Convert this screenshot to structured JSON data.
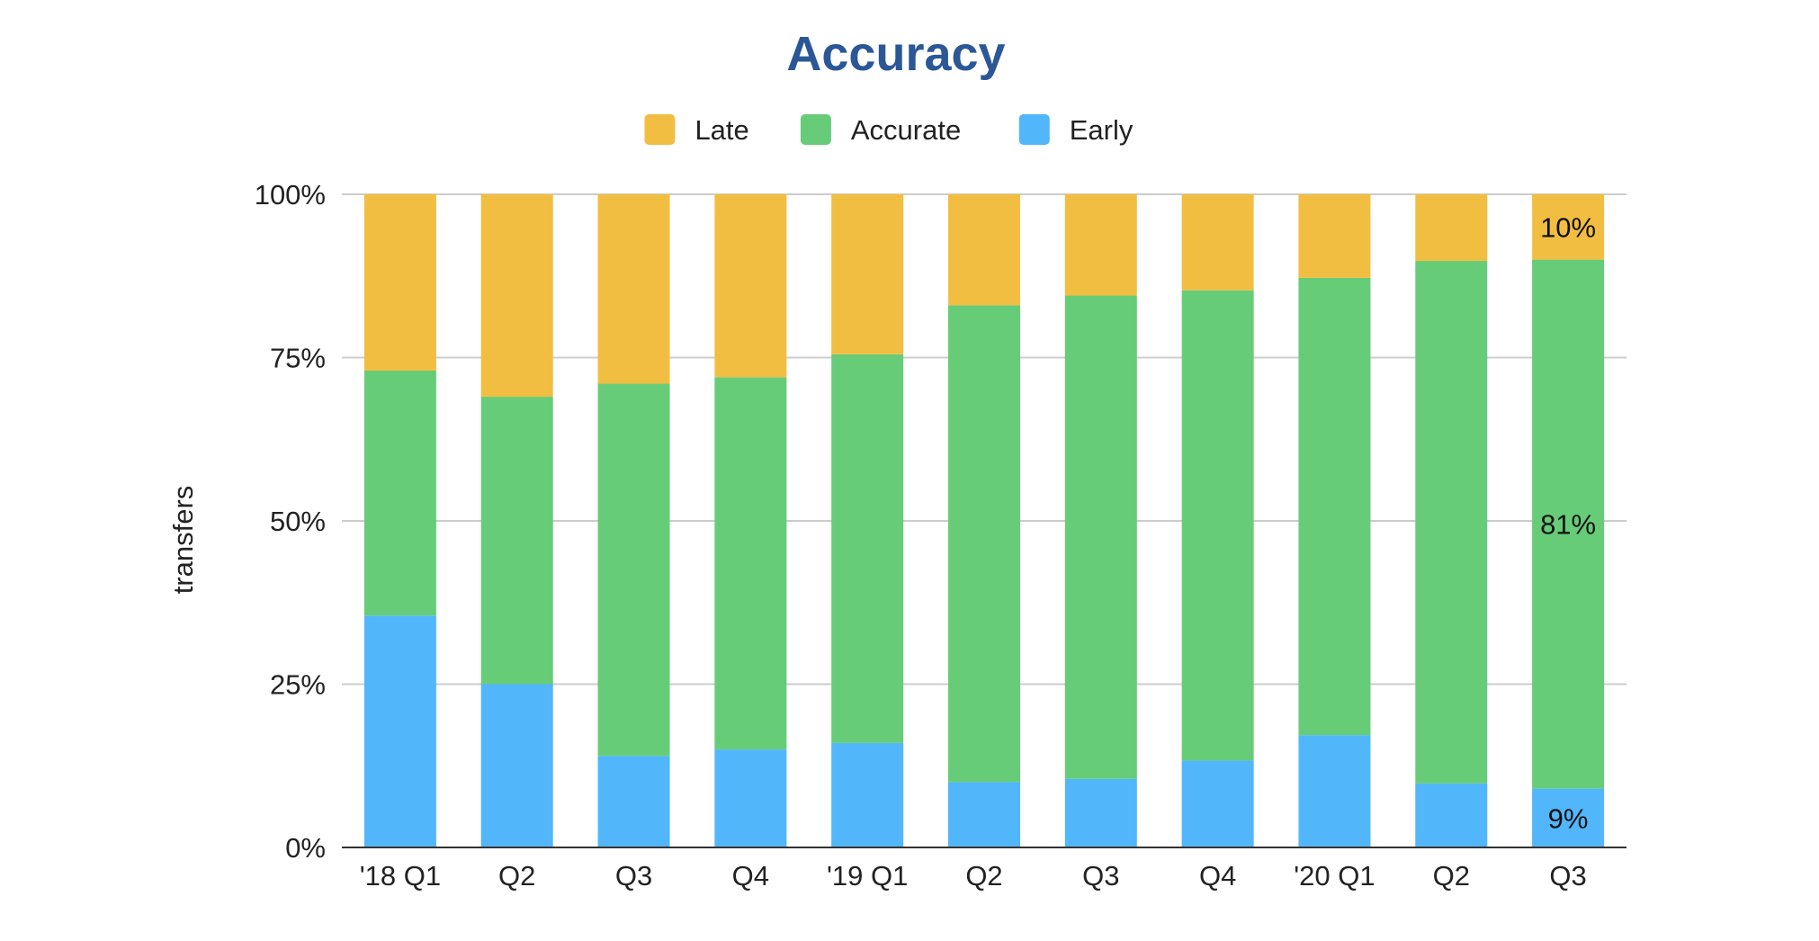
{
  "chart_data": {
    "type": "bar",
    "stacked": true,
    "title": "Accuracy",
    "xlabel": "",
    "ylabel": "transfers",
    "ylim": [
      0,
      100
    ],
    "yticks": [
      "0%",
      "25%",
      "50%",
      "75%",
      "100%"
    ],
    "categories": [
      "'18 Q1",
      "Q2",
      "Q3",
      "Q4",
      "'19 Q1",
      "Q2",
      "Q3",
      "Q4",
      "'20 Q1",
      "Q2",
      "Q3"
    ],
    "legend_position": "top",
    "grid": true,
    "series": [
      {
        "name": "Early",
        "color": "#52B6FA",
        "values": [
          35.5,
          25,
          14,
          15,
          16,
          10,
          10.5,
          13.3,
          17.2,
          9.8,
          9
        ]
      },
      {
        "name": "Accurate",
        "color": "#67CC78",
        "values": [
          37.5,
          44,
          57,
          57,
          59.5,
          73,
          74,
          72,
          70,
          80,
          81
        ]
      },
      {
        "name": "Late",
        "color": "#F2BE42",
        "values": [
          27,
          31,
          29,
          28,
          24.5,
          17,
          15.5,
          14.7,
          12.8,
          10.2,
          10
        ]
      }
    ],
    "legend_order": [
      "Late",
      "Accurate",
      "Early"
    ],
    "data_labels": [
      {
        "category_index": 10,
        "series": "Late",
        "text": "10%"
      },
      {
        "category_index": 10,
        "series": "Accurate",
        "text": "81%"
      },
      {
        "category_index": 10,
        "series": "Early",
        "text": "9%"
      }
    ],
    "title_color": "#2B5797"
  }
}
